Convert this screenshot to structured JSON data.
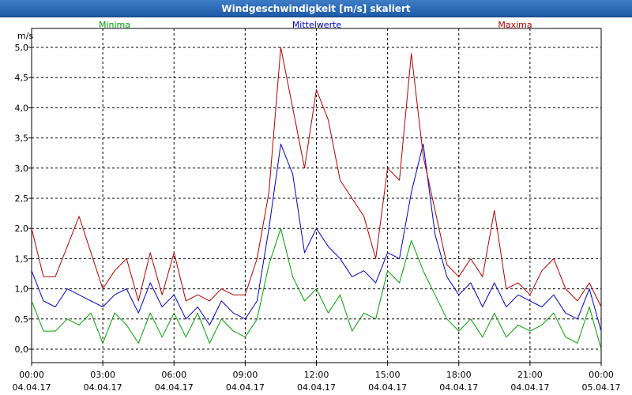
{
  "window": {
    "title": "Windgeschwindigkeit [m/s] skaliert"
  },
  "chart_data": {
    "type": "line",
    "title": "Windgeschwindigkeit [m/s] skaliert",
    "ylabel": "m/s",
    "ylim": [
      0,
      5
    ],
    "xlim": [
      "04.04.17 00:00",
      "05.04.17 00:00"
    ],
    "grid": true,
    "y_ticks": [
      "0,0",
      "0,5",
      "1,0",
      "1,5",
      "2,0",
      "2,5",
      "3,0",
      "3,5",
      "4,0",
      "4,5",
      "5,0"
    ],
    "x_ticks": [
      {
        "time": "00:00",
        "date": "04.04.17"
      },
      {
        "time": "03:00",
        "date": "04.04.17"
      },
      {
        "time": "06:00",
        "date": "04.04.17"
      },
      {
        "time": "09:00",
        "date": "04.04.17"
      },
      {
        "time": "12:00",
        "date": "04.04.17"
      },
      {
        "time": "15:00",
        "date": "04.04.17"
      },
      {
        "time": "18:00",
        "date": "04.04.17"
      },
      {
        "time": "21:00",
        "date": "04.04.17"
      },
      {
        "time": "00:00",
        "date": "05.04.17"
      }
    ],
    "x_hours": [
      0,
      0.5,
      1,
      1.5,
      2,
      2.5,
      3,
      3.5,
      4,
      4.5,
      5,
      5.5,
      6,
      6.5,
      7,
      7.5,
      8,
      8.5,
      9,
      9.5,
      10,
      10.5,
      11,
      11.5,
      12,
      12.5,
      13,
      13.5,
      14,
      14.5,
      15,
      15.5,
      16,
      16.5,
      17,
      17.5,
      18,
      18.5,
      19,
      19.5,
      20,
      20.5,
      21,
      21.5,
      22,
      22.5,
      23,
      23.5,
      24
    ],
    "series": [
      {
        "name": "Minima",
        "color": "#00a000",
        "values": [
          0.8,
          0.3,
          0.3,
          0.5,
          0.4,
          0.6,
          0.1,
          0.6,
          0.4,
          0.1,
          0.6,
          0.2,
          0.6,
          0.2,
          0.6,
          0.1,
          0.5,
          0.3,
          0.2,
          0.5,
          1.4,
          2.0,
          1.2,
          0.8,
          1.0,
          0.6,
          0.9,
          0.3,
          0.6,
          0.5,
          1.3,
          1.1,
          1.8,
          1.3,
          0.9,
          0.5,
          0.3,
          0.5,
          0.2,
          0.6,
          0.2,
          0.4,
          0.3,
          0.4,
          0.6,
          0.2,
          0.1,
          0.7,
          0.0
        ]
      },
      {
        "name": "Mittelwerte",
        "color": "#0000c8",
        "values": [
          1.3,
          0.8,
          0.7,
          1.0,
          0.9,
          0.8,
          0.7,
          0.9,
          1.0,
          0.6,
          1.1,
          0.7,
          0.9,
          0.5,
          0.7,
          0.4,
          0.8,
          0.6,
          0.5,
          0.8,
          2.0,
          3.4,
          2.9,
          1.6,
          2.0,
          1.7,
          1.5,
          1.2,
          1.3,
          1.1,
          1.6,
          1.5,
          2.6,
          3.4,
          1.9,
          1.2,
          0.9,
          1.1,
          0.7,
          1.1,
          0.7,
          0.9,
          0.8,
          0.7,
          0.9,
          0.6,
          0.5,
          1.0,
          0.3
        ]
      },
      {
        "name": "Maxima",
        "color": "#b40000",
        "values": [
          2.0,
          1.2,
          1.2,
          1.7,
          2.2,
          1.6,
          1.0,
          1.3,
          1.5,
          0.8,
          1.6,
          0.9,
          1.6,
          0.8,
          0.9,
          0.8,
          1.0,
          0.9,
          0.9,
          1.5,
          2.6,
          5.0,
          4.0,
          3.0,
          4.3,
          3.8,
          2.8,
          2.5,
          2.2,
          1.5,
          3.0,
          2.8,
          4.9,
          3.2,
          2.3,
          1.4,
          1.2,
          1.5,
          1.2,
          2.3,
          1.0,
          1.1,
          0.9,
          1.3,
          1.5,
          1.0,
          0.8,
          1.1,
          0.7
        ]
      }
    ]
  }
}
